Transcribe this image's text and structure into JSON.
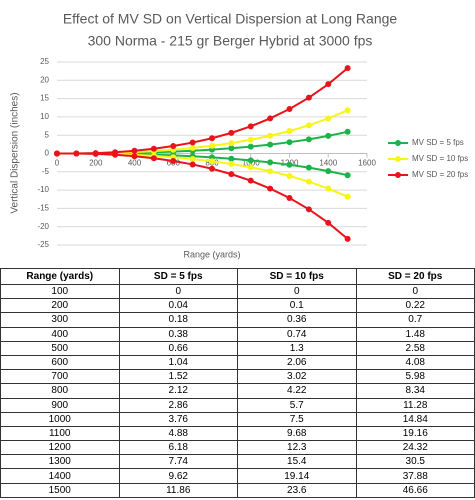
{
  "chart_data": {
    "type": "line",
    "title": "Effect of MV SD on Vertical Dispersion at Long Range",
    "subtitle": "300 Norma - 215 gr Berger Hybrid at 3000 fps",
    "x_label": "Range (yards)",
    "y_label": "Vertical Dispersion (inches)",
    "x": [
      0,
      100,
      200,
      300,
      400,
      500,
      600,
      700,
      800,
      900,
      1000,
      1100,
      1200,
      1300,
      1400,
      1500
    ],
    "series": [
      {
        "name": "MV SD = 5 fps",
        "color": "#1db34a",
        "values": [
          0,
          0,
          0.02,
          0.09,
          0.19,
          0.33,
          0.52,
          0.76,
          1.06,
          1.43,
          1.88,
          2.44,
          3.09,
          3.87,
          4.81,
          5.93
        ],
        "lower": [
          0,
          0,
          -0.02,
          -0.09,
          -0.19,
          -0.33,
          -0.52,
          -0.76,
          -1.06,
          -1.43,
          -1.88,
          -2.44,
          -3.09,
          -3.87,
          -4.81,
          -5.93
        ]
      },
      {
        "name": "MV SD = 10 fps",
        "color": "#f5f51a",
        "values": [
          0,
          0,
          0.05,
          0.18,
          0.37,
          0.65,
          1.03,
          1.51,
          2.11,
          2.85,
          3.75,
          4.84,
          6.15,
          7.7,
          9.57,
          11.8
        ],
        "lower": [
          0,
          0,
          -0.05,
          -0.18,
          -0.37,
          -0.65,
          -1.03,
          -1.51,
          -2.11,
          -2.85,
          -3.75,
          -4.84,
          -6.15,
          -7.7,
          -9.57,
          -11.8
        ]
      },
      {
        "name": "MV SD = 20 fps",
        "color": "#e8131b",
        "values": [
          0,
          0,
          0.11,
          0.35,
          0.74,
          1.29,
          2.04,
          2.99,
          4.17,
          5.64,
          7.42,
          9.58,
          12.16,
          15.25,
          18.94,
          23.33
        ],
        "lower": [
          0,
          0,
          -0.11,
          -0.35,
          -0.74,
          -1.29,
          -2.04,
          -2.99,
          -4.17,
          -5.64,
          -7.42,
          -9.58,
          -12.16,
          -15.25,
          -18.94,
          -23.33
        ]
      }
    ],
    "xlim": [
      0,
      1600
    ],
    "xticks": [
      0,
      200,
      400,
      600,
      800,
      1000,
      1200,
      1400,
      1600
    ],
    "ylim": [
      -25,
      25
    ],
    "yticks": [
      -25,
      -20,
      -15,
      -10,
      -5,
      0,
      5,
      10,
      15,
      20,
      25
    ],
    "grid": true,
    "legend": "right"
  },
  "table": {
    "headers": [
      "Range (yards)",
      "SD = 5 fps",
      "SD = 10 fps",
      "SD = 20 fps"
    ],
    "rows": [
      [
        100,
        0,
        0,
        0
      ],
      [
        200,
        0.04,
        0.1,
        0.22
      ],
      [
        300,
        0.18,
        0.36,
        0.7
      ],
      [
        400,
        0.38,
        0.74,
        1.48
      ],
      [
        500,
        0.66,
        1.3,
        2.58
      ],
      [
        600,
        1.04,
        2.06,
        4.08
      ],
      [
        700,
        1.52,
        3.02,
        5.98
      ],
      [
        800,
        2.12,
        4.22,
        8.34
      ],
      [
        900,
        2.86,
        5.7,
        11.28
      ],
      [
        1000,
        3.76,
        7.5,
        14.84
      ],
      [
        1100,
        4.88,
        9.68,
        19.16
      ],
      [
        1200,
        6.18,
        12.3,
        24.32
      ],
      [
        1300,
        7.74,
        15.4,
        30.5
      ],
      [
        1400,
        9.62,
        19.14,
        37.88
      ],
      [
        1500,
        11.86,
        23.6,
        46.66
      ]
    ]
  }
}
